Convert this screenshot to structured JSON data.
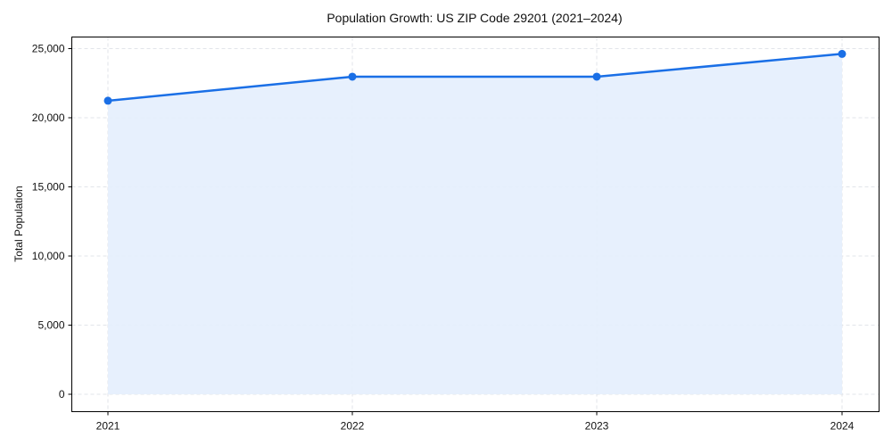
{
  "chart_data": {
    "type": "area",
    "title": "Population Growth: US ZIP Code 29201 (2021–2024)",
    "xlabel": "",
    "ylabel": "Total Population",
    "categories": [
      "2021",
      "2022",
      "2023",
      "2024"
    ],
    "series": [
      {
        "name": "Total Population",
        "values": [
          21230,
          22970,
          22970,
          24620
        ]
      }
    ],
    "ylim": [
      -1300,
      26300
    ],
    "yticks": [
      0,
      5000,
      10000,
      15000,
      20000,
      25000
    ],
    "ytick_labels": [
      "0",
      "5,000",
      "10,000",
      "15,000",
      "20,000",
      "25,000"
    ],
    "grid": true,
    "legend": null,
    "markers": true,
    "fill_under_line": true
  },
  "colors": {
    "line": "#1a6fe6",
    "marker": "#1a6fe6",
    "fill": "#e4eefd",
    "grid": "#d9dde3",
    "axis": "#000000"
  }
}
